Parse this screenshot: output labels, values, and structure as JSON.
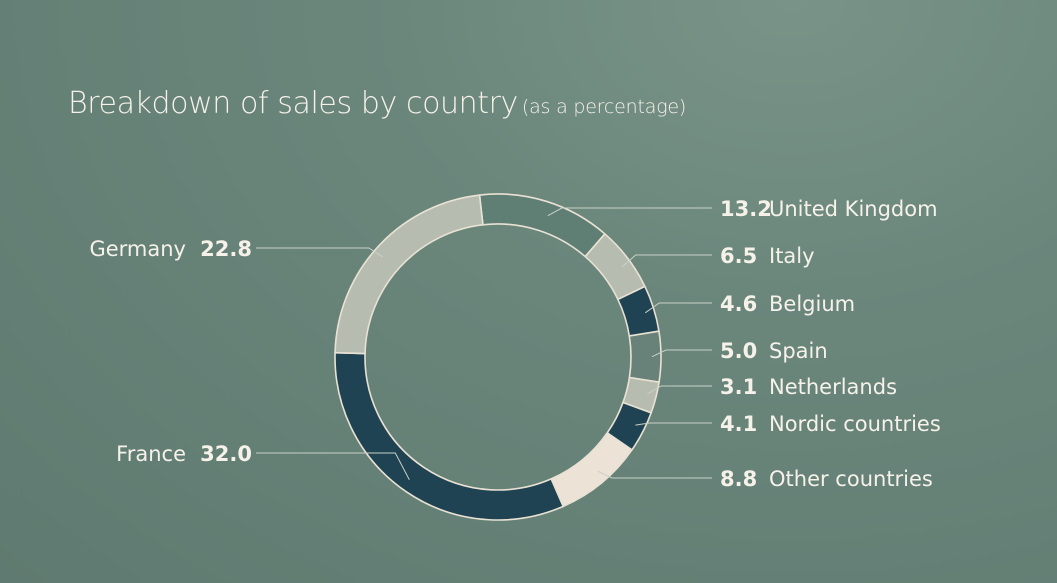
{
  "chart_data": {
    "type": "pie",
    "title": "Breakdown of sales by country",
    "subtitle": "(as a percentage)",
    "categories": [
      "United Kingdom",
      "Italy",
      "Belgium",
      "Spain",
      "Netherlands",
      "Nordic countries",
      "Other countries",
      "France",
      "Germany"
    ],
    "values": [
      13.2,
      6.5,
      4.6,
      5.0,
      3.1,
      4.1,
      8.8,
      32.0,
      22.8
    ],
    "value_labels": [
      "13.2",
      "6.5",
      "4.6",
      "5.0",
      "3.1",
      "4.1",
      "8.8",
      "32.0",
      "22.8"
    ],
    "colors": [
      "#5f7f75",
      "#b6bdb0",
      "#1f4352",
      "#688279",
      "#b6bdb0",
      "#1f4352",
      "#ece2d6",
      "#1f4352",
      "#b6bdb0"
    ],
    "donut": true,
    "legend": "none"
  }
}
